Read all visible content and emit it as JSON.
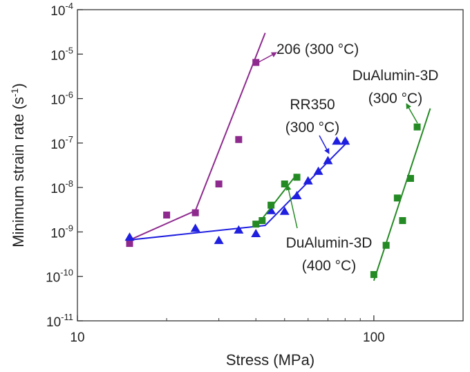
{
  "chart_data": {
    "type": "scatter",
    "x_label": "Stress (MPa)",
    "y_label": "Minimum strain rate (s",
    "y_label_sup": "-1",
    "y_label_end": ")",
    "xlog": true,
    "ylog": true,
    "xlim": [
      10,
      200
    ],
    "ylim": [
      1e-11,
      0.0001
    ],
    "xticks": [
      10,
      100
    ],
    "xminor_ticks": [
      20,
      30,
      40,
      50,
      60,
      70,
      80,
      90,
      200
    ],
    "yticks": [
      {
        "value": 1e-11,
        "label": "10",
        "exponent": "-11"
      },
      {
        "value": 1e-10,
        "label": "10",
        "exponent": "-10"
      },
      {
        "value": 1e-09,
        "label": "10",
        "exponent": "-9"
      },
      {
        "value": 1e-08,
        "label": "10",
        "exponent": "-8"
      },
      {
        "value": 1e-07,
        "label": "10",
        "exponent": "-7"
      },
      {
        "value": 1e-06,
        "label": "10",
        "exponent": "-6"
      },
      {
        "value": 1e-05,
        "label": "10",
        "exponent": "-5"
      },
      {
        "value": 0.0001,
        "label": "10",
        "exponent": "-4"
      }
    ],
    "series": [
      {
        "color": "#8e2a8e",
        "marker": "square",
        "x": [
          15,
          20,
          25,
          30,
          35,
          40
        ],
        "values": [
          5.5e-10,
          2.4e-09,
          2.7e-09,
          1.2e-08,
          1.2e-07,
          6.5e-06
        ]
      },
      {
        "color": "#8e2a8e",
        "marker": "line",
        "x": [
          15,
          25,
          43
        ],
        "values": [
          6.6e-10,
          3e-09,
          3e-05
        ]
      },
      {
        "color": "#1f1fe0",
        "marker": "triangle",
        "x": [
          15,
          25,
          30,
          35,
          40,
          45,
          50,
          55,
          60,
          65,
          70,
          75,
          80
        ],
        "values": [
          7.6e-10,
          1.2e-09,
          6.4e-10,
          1.1e-09,
          9.1e-10,
          3e-09,
          2.9e-09,
          6.5e-09,
          1.4e-08,
          2.3e-08,
          4e-08,
          1.1e-07,
          1.1e-07
        ]
      },
      {
        "color": "#1f1fe0",
        "marker": "line",
        "x": [
          15,
          43,
          82
        ],
        "values": [
          6.6e-10,
          1.4e-09,
          1.1e-07
        ]
      },
      {
        "color": "#248a24",
        "marker": "square",
        "x": [
          40,
          42,
          45,
          50,
          55
        ],
        "values": [
          1.5e-09,
          1.8e-09,
          4e-09,
          1.2e-08,
          1.7e-08
        ]
      },
      {
        "color": "#248a24",
        "marker": "line",
        "x": [
          40,
          55
        ],
        "values": [
          1.3e-09,
          2e-08
        ]
      },
      {
        "color": "#248a24",
        "marker": "square",
        "x": [
          100,
          110,
          120,
          125,
          133,
          140
        ],
        "values": [
          1.1e-10,
          5e-10,
          5.8e-09,
          1.8e-09,
          1.6e-08,
          2.3e-07
        ]
      },
      {
        "color": "#248a24",
        "marker": "line",
        "x": [
          100,
          155
        ],
        "values": [
          8e-11,
          6e-07
        ]
      }
    ],
    "annotations": [
      {
        "lines": [
          "206 (300 °C)"
        ],
        "color": "#8e2a8e"
      },
      {
        "lines": [
          "RR350",
          "(300 °C)"
        ],
        "color": "#1f1fe0"
      },
      {
        "lines": [
          "DuAlumin-3D",
          "(300 °C)"
        ],
        "color": "#248a24"
      },
      {
        "lines": [
          "DuAlumin-3D",
          "(400 °C)"
        ],
        "color": "#248a24"
      }
    ]
  }
}
